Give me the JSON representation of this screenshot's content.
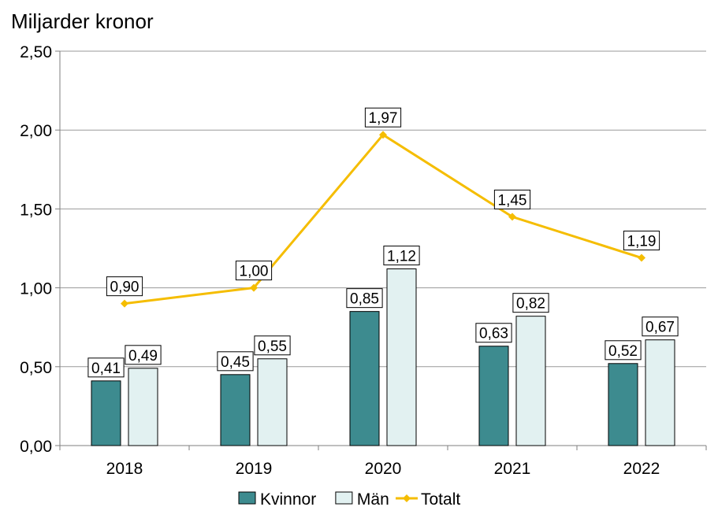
{
  "chart_data": {
    "type": "bar",
    "ylabel": "Miljarder kronor",
    "ylim": [
      0,
      2.5
    ],
    "yticks": [
      "0,00",
      "0,50",
      "1,00",
      "1,50",
      "2,00",
      "2,50"
    ],
    "ytick_values": [
      0,
      0.5,
      1.0,
      1.5,
      2.0,
      2.5
    ],
    "categories": [
      "2018",
      "2019",
      "2020",
      "2021",
      "2022"
    ],
    "series": [
      {
        "name": "Kvinnor",
        "kind": "bar",
        "color": "#3d8b8f",
        "values": [
          0.41,
          0.45,
          0.85,
          0.63,
          0.52
        ],
        "labels": [
          "0,41",
          "0,45",
          "0,85",
          "0,63",
          "0,52"
        ]
      },
      {
        "name": "Män",
        "kind": "bar",
        "color": "#e2f1f1",
        "values": [
          0.49,
          0.55,
          1.12,
          0.82,
          0.67
        ],
        "labels": [
          "0,49",
          "0,55",
          "1,12",
          "0,82",
          "0,67"
        ]
      },
      {
        "name": "Totalt",
        "kind": "line",
        "color": "#f5bd00",
        "values": [
          0.9,
          1.0,
          1.97,
          1.45,
          1.19
        ],
        "labels": [
          "0,90",
          "1,00",
          "1,97",
          "1,45",
          "1,19"
        ]
      }
    ],
    "legend": "bottom",
    "grid": true
  }
}
